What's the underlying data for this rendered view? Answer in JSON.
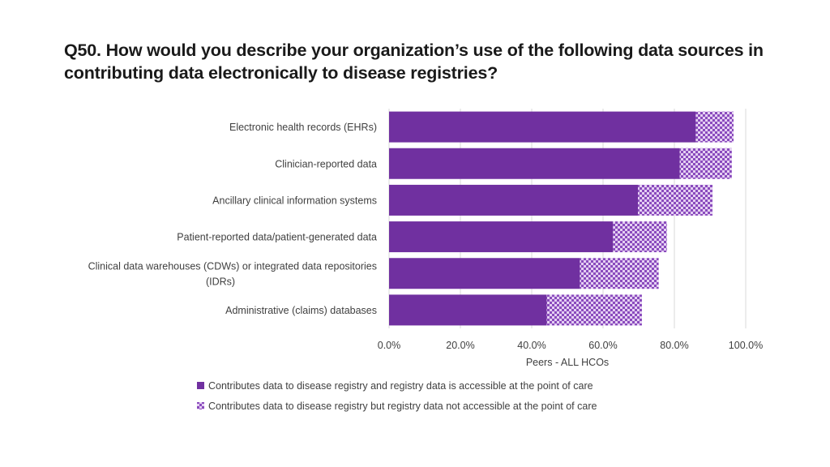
{
  "title": "Q50. How would you describe your organization’s use of the following data sources in contributing data electronically to disease registries?",
  "chart_data": {
    "type": "bar",
    "orientation": "horizontal",
    "stacked": true,
    "categories": [
      "Electronic health records (EHRs)",
      "Clinician-reported data",
      "Ancillary clinical information systems",
      "Patient-reported data/patient-generated data",
      "Clinical data warehouses (CDWs) or integrated data repositories (IDRs)",
      "Administrative (claims) databases"
    ],
    "category_label_lines": [
      [
        "Electronic health records (EHRs)"
      ],
      [
        "Clinician-reported data"
      ],
      [
        "Ancillary clinical information systems"
      ],
      [
        "Patient-reported data/patient-generated data"
      ],
      [
        "Clinical data warehouses (CDWs) or integrated data repositories",
        "(IDRs)"
      ],
      [
        "Administrative (claims) databases"
      ]
    ],
    "series": [
      {
        "name": "Contributes data to disease registry and registry data is accessible at the point of care",
        "values": [
          86.0,
          81.5,
          69.8,
          62.8,
          53.5,
          44.2
        ],
        "color": "#7030a0",
        "pattern": "solid"
      },
      {
        "name": "Contributes data to disease registry but registry data not accessible at the point of care",
        "values": [
          10.6,
          14.6,
          20.9,
          15.1,
          22.1,
          26.7
        ],
        "color": "#7030a0",
        "pattern": "checker"
      }
    ],
    "xlabel": "Peers - ALL HCOs",
    "xlim": [
      0,
      100
    ],
    "xticks": [
      0,
      20,
      40,
      60,
      80,
      100
    ],
    "xtick_labels": [
      "0.0%",
      "20.0%",
      "40.0%",
      "60.0%",
      "80.0%",
      "100.0%"
    ],
    "grid": true,
    "legend_position": "bottom"
  }
}
